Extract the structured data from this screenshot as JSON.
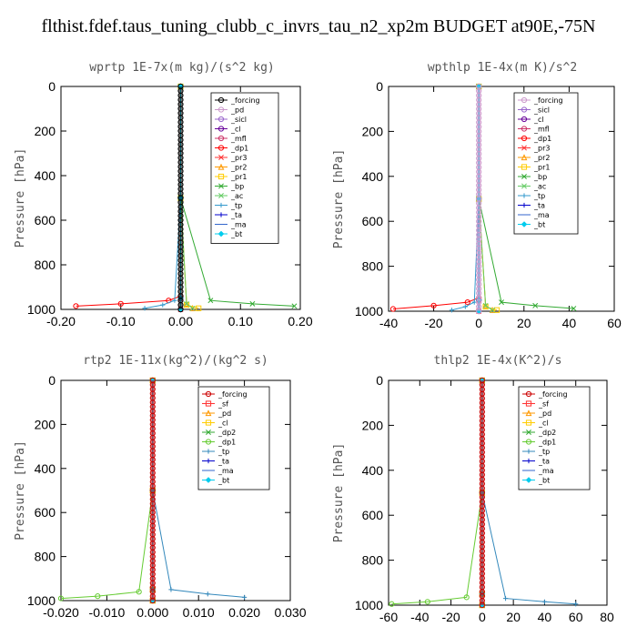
{
  "figure": {
    "title": "flthist.fdef.taus_tuning_clubb_c_invrs_tau_n2_xp2m  BUDGET at90E,-75N"
  },
  "chart_data": [
    {
      "type": "line",
      "title": "wprtp  1E-7x(m kg)/(s^2 kg)",
      "ylabel": "Pressure [hPa]",
      "xlim": [
        -0.2,
        0.2
      ],
      "ylim": [
        1000,
        0
      ],
      "xticks": [
        "-0.20",
        "-0.10",
        "0.00",
        "0.10",
        "0.20"
      ],
      "xtick_values": [
        -0.2,
        -0.1,
        0.0,
        0.1,
        0.2
      ],
      "yticks": [
        "0",
        "200",
        "400",
        "600",
        "800",
        "1000"
      ],
      "ytick_values": [
        0,
        200,
        400,
        600,
        800,
        1000
      ],
      "legend_position": "top-right",
      "series": [
        {
          "name": "_forcing",
          "color": "#000000",
          "marker": "o",
          "x": [
            0,
            0,
            0,
            0
          ],
          "y": [
            0,
            500,
            950,
            1000
          ]
        },
        {
          "name": "_pd",
          "color": "#cc99cc",
          "marker": "o",
          "x": [
            0,
            0,
            0,
            0
          ],
          "y": [
            0,
            500,
            950,
            1000
          ]
        },
        {
          "name": "_sicl",
          "color": "#9966cc",
          "marker": "o",
          "x": [
            0,
            0,
            0,
            0
          ],
          "y": [
            0,
            500,
            950,
            1000
          ]
        },
        {
          "name": "_cl",
          "color": "#660099",
          "marker": "o",
          "x": [
            0,
            0,
            0,
            0
          ],
          "y": [
            0,
            500,
            950,
            1000
          ]
        },
        {
          "name": "_mfl",
          "color": "#cc3366",
          "marker": "o",
          "x": [
            0,
            0,
            0,
            0
          ],
          "y": [
            0,
            500,
            950,
            1000
          ]
        },
        {
          "name": "_dp1",
          "color": "#ff0000",
          "marker": "o",
          "x": [
            0,
            0,
            0,
            -0.02,
            -0.1,
            -0.175
          ],
          "y": [
            0,
            500,
            940,
            960,
            975,
            985
          ]
        },
        {
          "name": "_pr3",
          "color": "#ff3333",
          "marker": "x",
          "x": [
            0,
            0,
            0,
            0
          ],
          "y": [
            0,
            500,
            950,
            1000
          ]
        },
        {
          "name": "_pr2",
          "color": "#ff9900",
          "marker": "^",
          "x": [
            0,
            0,
            0.01,
            0.02
          ],
          "y": [
            0,
            500,
            975,
            995
          ]
        },
        {
          "name": "_pr1",
          "color": "#ffcc00",
          "marker": "s",
          "x": [
            0,
            0,
            0.01,
            0.03
          ],
          "y": [
            0,
            500,
            980,
            995
          ]
        },
        {
          "name": "_bp",
          "color": "#33aa33",
          "marker": "x",
          "x": [
            0,
            0,
            0.05,
            0.12,
            0.19
          ],
          "y": [
            0,
            500,
            960,
            975,
            985
          ]
        },
        {
          "name": "_ac",
          "color": "#66cc66",
          "marker": "x",
          "x": [
            0,
            0,
            0.01,
            0.02
          ],
          "y": [
            0,
            500,
            975,
            995
          ]
        },
        {
          "name": "_tp",
          "color": "#3399cc",
          "marker": "+",
          "x": [
            0,
            0,
            -0.01,
            -0.03,
            -0.06
          ],
          "y": [
            0,
            500,
            960,
            980,
            995
          ]
        },
        {
          "name": "_ta",
          "color": "#0000cc",
          "marker": "+",
          "x": [
            0,
            0,
            0,
            0
          ],
          "y": [
            0,
            500,
            950,
            1000
          ]
        },
        {
          "name": "_ma",
          "color": "#3366cc",
          "marker": "-",
          "x": [
            0,
            0,
            0,
            0
          ],
          "y": [
            0,
            500,
            950,
            1000
          ]
        },
        {
          "name": "_bt",
          "color": "#00ccee",
          "marker": "d",
          "x": [
            0,
            0,
            0,
            0
          ],
          "y": [
            0,
            500,
            950,
            1000
          ]
        }
      ]
    },
    {
      "type": "line",
      "title": "wpthlp  1E-4x(m K)/s^2",
      "ylabel": "Pressure [hPa]",
      "xlim": [
        -40,
        60
      ],
      "ylim": [
        1000,
        0
      ],
      "xticks": [
        "-40",
        "-20",
        "0",
        "20",
        "40",
        "60"
      ],
      "xtick_values": [
        -40,
        -20,
        0,
        20,
        40,
        60
      ],
      "yticks": [
        "0",
        "200",
        "400",
        "600",
        "800",
        "1000"
      ],
      "ytick_values": [
        0,
        200,
        400,
        600,
        800,
        1000
      ],
      "legend_position": "top-right",
      "series": [
        {
          "name": "_forcing",
          "color": "#cc99cc",
          "marker": "o",
          "x": [
            0,
            0,
            0,
            0
          ],
          "y": [
            0,
            500,
            950,
            1000
          ]
        },
        {
          "name": "_sicl",
          "color": "#9966cc",
          "marker": "o",
          "x": [
            0,
            0,
            0,
            0
          ],
          "y": [
            0,
            500,
            950,
            1000
          ]
        },
        {
          "name": "_cl",
          "color": "#660099",
          "marker": "o",
          "x": [
            0,
            0,
            0,
            0
          ],
          "y": [
            0,
            500,
            950,
            1000
          ]
        },
        {
          "name": "_mfl",
          "color": "#cc3366",
          "marker": "o",
          "x": [
            0,
            0,
            0,
            0
          ],
          "y": [
            0,
            500,
            950,
            1000
          ]
        },
        {
          "name": "_dp1",
          "color": "#ff0000",
          "marker": "o",
          "x": [
            0,
            0,
            0,
            -5,
            -20,
            -38
          ],
          "y": [
            0,
            500,
            940,
            960,
            975,
            990
          ]
        },
        {
          "name": "_pr3",
          "color": "#ff3333",
          "marker": "x",
          "x": [
            0,
            0,
            0,
            0
          ],
          "y": [
            0,
            500,
            950,
            1000
          ]
        },
        {
          "name": "_pr2",
          "color": "#ff9900",
          "marker": "^",
          "x": [
            0,
            0,
            3,
            6
          ],
          "y": [
            0,
            500,
            975,
            995
          ]
        },
        {
          "name": "_pr1",
          "color": "#ffcc00",
          "marker": "s",
          "x": [
            0,
            0,
            3,
            8
          ],
          "y": [
            0,
            500,
            980,
            995
          ]
        },
        {
          "name": "_bp",
          "color": "#33aa33",
          "marker": "x",
          "x": [
            0,
            0,
            10,
            25,
            42
          ],
          "y": [
            0,
            500,
            960,
            975,
            988
          ]
        },
        {
          "name": "_ac",
          "color": "#66cc66",
          "marker": "x",
          "x": [
            0,
            0,
            3,
            6
          ],
          "y": [
            0,
            500,
            975,
            995
          ]
        },
        {
          "name": "_tp",
          "color": "#3399cc",
          "marker": "+",
          "x": [
            0,
            0,
            -2,
            -6,
            -12
          ],
          "y": [
            0,
            500,
            960,
            980,
            995
          ]
        },
        {
          "name": "_ta",
          "color": "#0000cc",
          "marker": "+",
          "x": [
            0,
            0,
            0,
            0
          ],
          "y": [
            0,
            500,
            950,
            1000
          ]
        },
        {
          "name": "_ma",
          "color": "#3366cc",
          "marker": "-",
          "x": [
            0,
            0,
            0,
            0
          ],
          "y": [
            0,
            500,
            950,
            1000
          ]
        },
        {
          "name": "_bt",
          "color": "#00ccee",
          "marker": "d",
          "x": [
            0,
            0,
            0,
            0
          ],
          "y": [
            0,
            500,
            950,
            1000
          ]
        }
      ]
    },
    {
      "type": "line",
      "title": "rtp2  1E-11x(kg^2)/(kg^2 s)",
      "ylabel": "Pressure [hPa]",
      "xlim": [
        -0.02,
        0.03
      ],
      "ylim": [
        1000,
        0
      ],
      "xticks": [
        "-0.020",
        "-0.010",
        "0.000",
        "0.010",
        "0.020",
        "0.030"
      ],
      "xtick_values": [
        -0.02,
        -0.01,
        0.0,
        0.01,
        0.02,
        0.03
      ],
      "yticks": [
        "0",
        "200",
        "400",
        "600",
        "800",
        "1000"
      ],
      "ytick_values": [
        0,
        200,
        400,
        600,
        800,
        1000
      ],
      "legend_position": "top-right",
      "series": [
        {
          "name": "_forcing",
          "color": "#cc0000",
          "marker": "o",
          "x": [
            0,
            0,
            0,
            0
          ],
          "y": [
            0,
            500,
            950,
            1000
          ]
        },
        {
          "name": "_sf",
          "color": "#ff3333",
          "marker": "s",
          "x": [
            0,
            0,
            0,
            0
          ],
          "y": [
            0,
            500,
            950,
            1000
          ]
        },
        {
          "name": "_pd",
          "color": "#ff9900",
          "marker": "^",
          "x": [
            0,
            0,
            0,
            0
          ],
          "y": [
            0,
            500,
            950,
            1000
          ]
        },
        {
          "name": "_cl",
          "color": "#ffcc00",
          "marker": "s",
          "x": [
            0,
            0,
            0,
            0
          ],
          "y": [
            0,
            500,
            950,
            1000
          ]
        },
        {
          "name": "_dp2",
          "color": "#33aa33",
          "marker": "x",
          "x": [
            0,
            0,
            0,
            0
          ],
          "y": [
            0,
            500,
            950,
            1000
          ]
        },
        {
          "name": "_dp1",
          "color": "#66cc33",
          "marker": "o",
          "x": [
            0,
            0,
            -0.003,
            -0.012,
            -0.02
          ],
          "y": [
            0,
            500,
            960,
            980,
            990
          ]
        },
        {
          "name": "_tp",
          "color": "#3388bb",
          "marker": "+",
          "x": [
            0,
            0,
            0.004,
            0.012,
            0.02
          ],
          "y": [
            0,
            500,
            950,
            970,
            985
          ]
        },
        {
          "name": "_ta",
          "color": "#0000cc",
          "marker": "+",
          "x": [
            0,
            0,
            0,
            0
          ],
          "y": [
            0,
            500,
            950,
            1000
          ]
        },
        {
          "name": "_ma",
          "color": "#3366cc",
          "marker": "-",
          "x": [
            0,
            0,
            0,
            0
          ],
          "y": [
            0,
            500,
            950,
            1000
          ]
        },
        {
          "name": "_bt",
          "color": "#00ccee",
          "marker": "d",
          "x": [
            0,
            0,
            0,
            0
          ],
          "y": [
            0,
            500,
            950,
            1000
          ]
        }
      ]
    },
    {
      "type": "line",
      "title": "thlp2  1E-4x(K^2)/s",
      "ylabel": "Pressure [hPa]",
      "xlim": [
        -60,
        80
      ],
      "ylim": [
        1000,
        0
      ],
      "xticks": [
        "-60",
        "-40",
        "-20",
        "0",
        "20",
        "40",
        "60",
        "80"
      ],
      "xtick_values": [
        -60,
        -40,
        -20,
        0,
        20,
        40,
        60,
        80
      ],
      "yticks": [
        "0",
        "200",
        "400",
        "600",
        "800",
        "1000"
      ],
      "ytick_values": [
        0,
        200,
        400,
        600,
        800,
        1000
      ],
      "legend_position": "top-right",
      "series": [
        {
          "name": "_forcing",
          "color": "#cc0000",
          "marker": "o",
          "x": [
            0,
            0,
            0,
            0
          ],
          "y": [
            0,
            500,
            950,
            1000
          ]
        },
        {
          "name": "_sf",
          "color": "#ff3333",
          "marker": "s",
          "x": [
            0,
            0,
            0,
            0
          ],
          "y": [
            0,
            500,
            950,
            1000
          ]
        },
        {
          "name": "_pd",
          "color": "#ff9900",
          "marker": "^",
          "x": [
            0,
            0,
            0,
            0
          ],
          "y": [
            0,
            500,
            950,
            1000
          ]
        },
        {
          "name": "_cl",
          "color": "#ffcc00",
          "marker": "s",
          "x": [
            0,
            0,
            0,
            0
          ],
          "y": [
            0,
            500,
            950,
            1000
          ]
        },
        {
          "name": "_dp2",
          "color": "#33aa33",
          "marker": "x",
          "x": [
            0,
            0,
            0,
            0
          ],
          "y": [
            0,
            500,
            950,
            1000
          ]
        },
        {
          "name": "_dp1",
          "color": "#66cc33",
          "marker": "o",
          "x": [
            0,
            0,
            -10,
            -35,
            -58
          ],
          "y": [
            0,
            500,
            965,
            985,
            995
          ]
        },
        {
          "name": "_tp",
          "color": "#3388bb",
          "marker": "+",
          "x": [
            0,
            0,
            15,
            40,
            60
          ],
          "y": [
            0,
            500,
            970,
            985,
            995
          ]
        },
        {
          "name": "_ta",
          "color": "#0000cc",
          "marker": "+",
          "x": [
            0,
            0,
            0,
            0
          ],
          "y": [
            0,
            500,
            950,
            1000
          ]
        },
        {
          "name": "_ma",
          "color": "#3366cc",
          "marker": "-",
          "x": [
            0,
            0,
            0,
            0
          ],
          "y": [
            0,
            500,
            950,
            1000
          ]
        },
        {
          "name": "_bt",
          "color": "#00ccee",
          "marker": "d",
          "x": [
            0,
            0,
            0,
            0
          ],
          "y": [
            0,
            500,
            950,
            1000
          ]
        }
      ]
    }
  ]
}
